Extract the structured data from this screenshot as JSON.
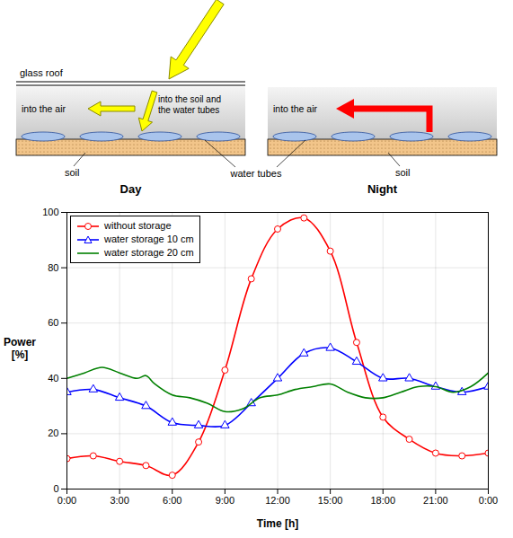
{
  "chart_data": {
    "type": "line",
    "x_label": "Time [h]",
    "y_label": "Power [%]",
    "xlim": [
      0,
      24
    ],
    "xticks": [
      {
        "value": 0,
        "label": "0:00"
      },
      {
        "value": 3,
        "label": "3:00"
      },
      {
        "value": 6,
        "label": "6:00"
      },
      {
        "value": 9,
        "label": "9:00"
      },
      {
        "value": 12,
        "label": "12:00"
      },
      {
        "value": 15,
        "label": "15:00"
      },
      {
        "value": 18,
        "label": "18:00"
      },
      {
        "value": 21,
        "label": "21:00"
      },
      {
        "value": 24,
        "label": "0:00"
      }
    ],
    "ylim": [
      0,
      100
    ],
    "yticks": [
      0,
      20,
      40,
      60,
      80,
      100
    ],
    "grid": true,
    "legend": "top-left",
    "series": [
      {
        "name": "without storage",
        "color": "#ff0000",
        "marker": "circle",
        "x": [
          0,
          1.5,
          3,
          4.5,
          6,
          7.5,
          9,
          10.5,
          12,
          13.5,
          15,
          16.5,
          18,
          19.5,
          21,
          22.5,
          24
        ],
        "values": [
          11,
          12,
          10,
          8.5,
          5,
          17,
          43,
          76,
          94,
          98,
          86,
          53,
          26,
          18,
          13,
          12,
          13
        ]
      },
      {
        "name": "water storage 10 cm",
        "color": "#0000ff",
        "marker": "triangle",
        "x": [
          0,
          1.5,
          3,
          4.5,
          6,
          7.5,
          9,
          10.5,
          12,
          13.5,
          15,
          16.5,
          18,
          19.5,
          21,
          22.5,
          24
        ],
        "values": [
          35,
          36,
          33,
          30,
          24,
          23,
          23,
          31,
          40,
          49,
          51,
          46,
          40,
          40,
          37,
          35,
          37
        ]
      },
      {
        "name": "water storage 20 cm",
        "color": "#008000",
        "x": [
          0,
          1,
          2,
          3,
          4,
          4.5,
          5,
          6,
          7,
          8,
          9,
          10,
          11,
          12,
          13,
          14,
          15,
          16,
          17,
          18,
          19,
          20,
          21,
          22,
          23,
          24
        ],
        "values": [
          40,
          42,
          44,
          42,
          40,
          41,
          38,
          34,
          33,
          31,
          28,
          29,
          33,
          34,
          36,
          37,
          38,
          35,
          33,
          33,
          35,
          37,
          37,
          35,
          37,
          42
        ]
      }
    ]
  },
  "diagram": {
    "panels": [
      {
        "title": "Day",
        "roof": "glass roof",
        "to_air": "into the air",
        "to_soil": "into  the soil and the water tubes",
        "soil": "soil"
      },
      {
        "title": "Night",
        "to_air": "into the air",
        "soil": "soil"
      }
    ],
    "shared_label": "water tubes"
  }
}
